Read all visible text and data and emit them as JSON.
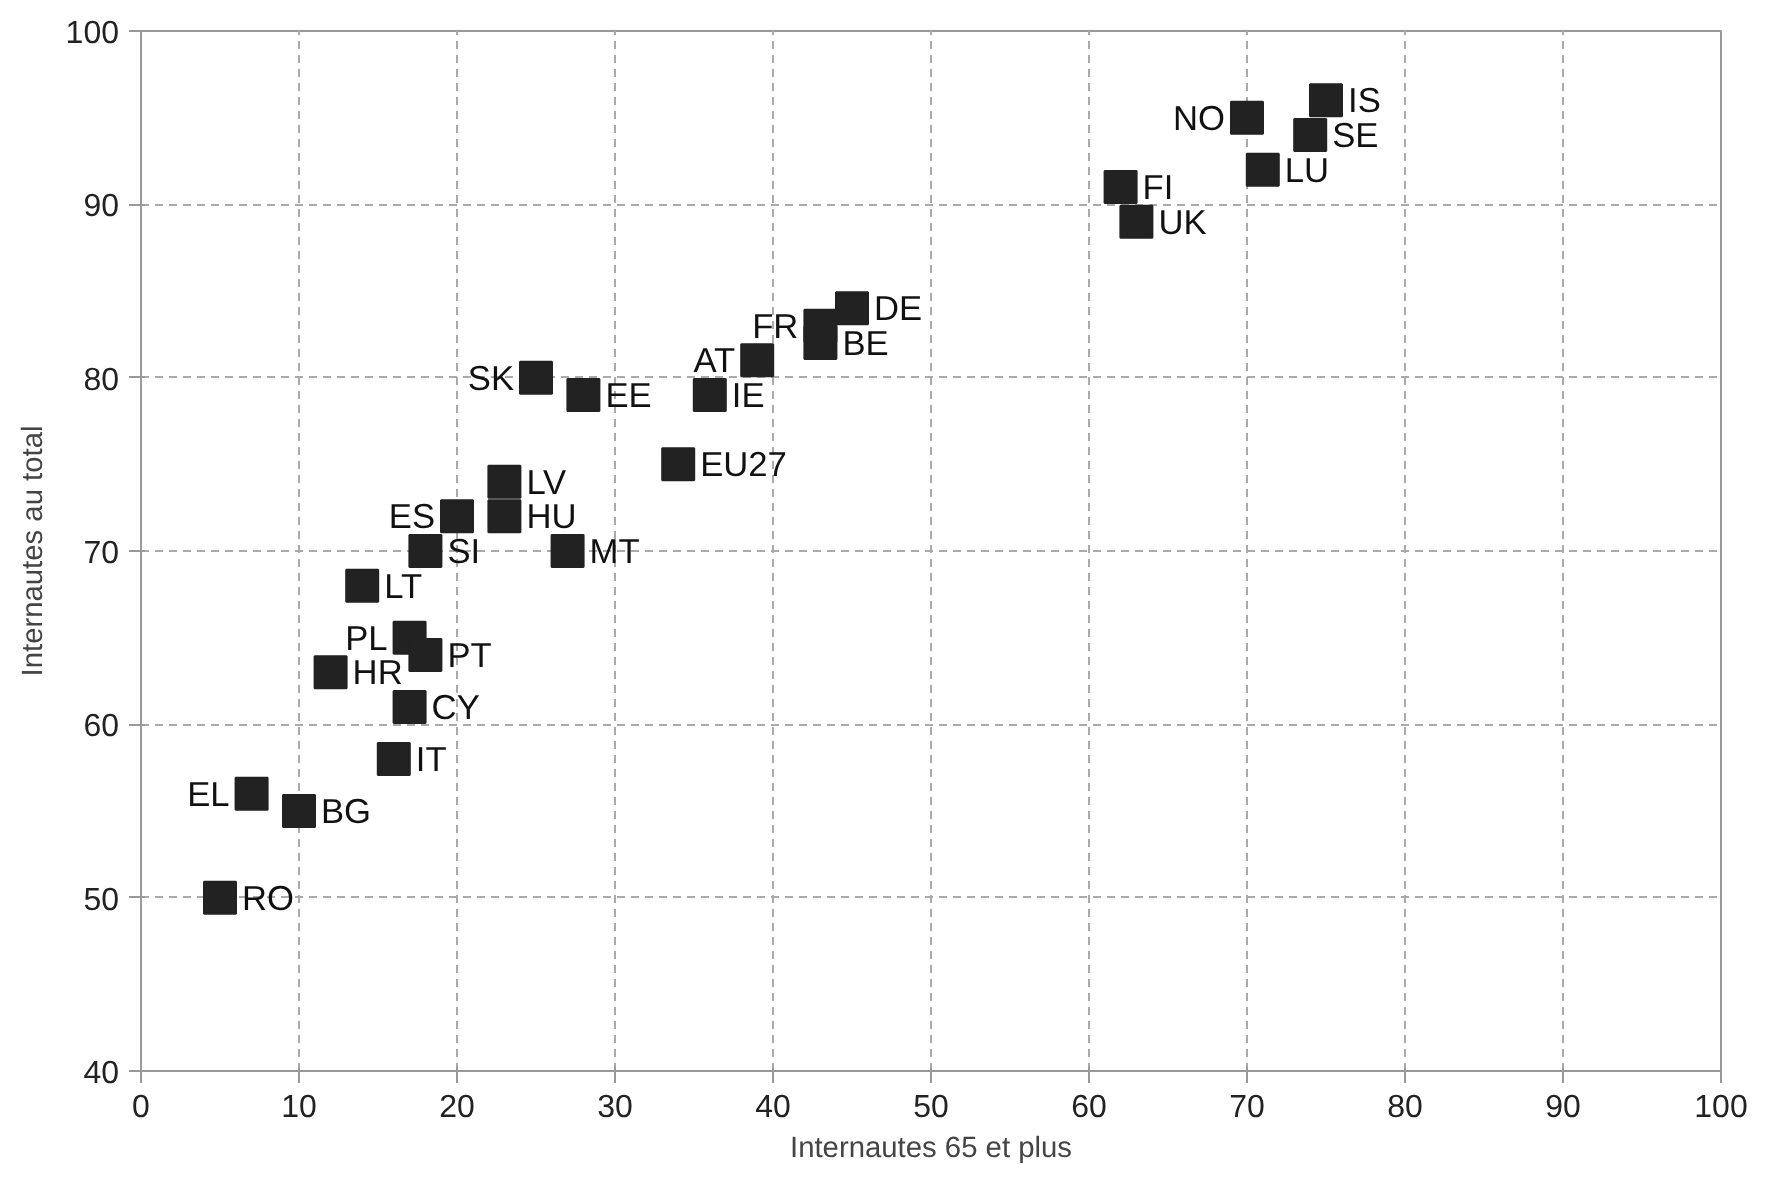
{
  "chart_data": {
    "type": "scatter",
    "xlabel": "Internautes 65 et plus",
    "ylabel": "Internautes au total",
    "xlim": [
      0,
      100
    ],
    "ylim": [
      40,
      100
    ],
    "xticks": [
      0,
      10,
      20,
      30,
      40,
      50,
      60,
      70,
      80,
      90,
      100
    ],
    "yticks": [
      40,
      50,
      60,
      70,
      80,
      90,
      100
    ],
    "grid": true,
    "marker": "square",
    "series": [
      {
        "color": "#222222",
        "x": [
          5,
          7,
          10,
          12,
          16,
          17,
          17,
          18,
          14,
          18,
          20,
          23,
          23,
          27,
          25,
          28,
          34,
          36,
          39,
          43,
          43,
          45,
          62,
          63,
          70,
          71,
          74,
          75
        ],
        "values": [
          50,
          56,
          55,
          63,
          58,
          61,
          65,
          64,
          68,
          70,
          72,
          74,
          72,
          70,
          80,
          79,
          75,
          79,
          81,
          82,
          83,
          84,
          91,
          89,
          95,
          92,
          94,
          96
        ]
      }
    ],
    "annotations": [
      {
        "text": "RO",
        "x": 5,
        "y": 50
      },
      {
        "text": "EL",
        "x": 7,
        "y": 56
      },
      {
        "text": "BG",
        "x": 10,
        "y": 55
      },
      {
        "text": "HR",
        "x": 12,
        "y": 63
      },
      {
        "text": "IT",
        "x": 16,
        "y": 58
      },
      {
        "text": "CY",
        "x": 17,
        "y": 61
      },
      {
        "text": "PL",
        "x": 17,
        "y": 65
      },
      {
        "text": "PT",
        "x": 18,
        "y": 64
      },
      {
        "text": "LT",
        "x": 14,
        "y": 68
      },
      {
        "text": "SI",
        "x": 18,
        "y": 70
      },
      {
        "text": "ES",
        "x": 20,
        "y": 72
      },
      {
        "text": "LV",
        "x": 23,
        "y": 74
      },
      {
        "text": "HU",
        "x": 23,
        "y": 72
      },
      {
        "text": "MT",
        "x": 27,
        "y": 70
      },
      {
        "text": "SK",
        "x": 25,
        "y": 80
      },
      {
        "text": "EE",
        "x": 28,
        "y": 79
      },
      {
        "text": "EU27",
        "x": 34,
        "y": 75
      },
      {
        "text": "IE",
        "x": 36,
        "y": 79
      },
      {
        "text": "AT",
        "x": 39,
        "y": 81
      },
      {
        "text": "BE",
        "x": 43,
        "y": 82
      },
      {
        "text": "FR",
        "x": 43,
        "y": 83
      },
      {
        "text": "DE",
        "x": 45,
        "y": 84
      },
      {
        "text": "FI",
        "x": 62,
        "y": 91
      },
      {
        "text": "UK",
        "x": 63,
        "y": 89
      },
      {
        "text": "NO",
        "x": 70,
        "y": 95
      },
      {
        "text": "LU",
        "x": 71,
        "y": 92
      },
      {
        "text": "SE",
        "x": 74,
        "y": 94
      },
      {
        "text": "IS",
        "x": 75,
        "y": 96
      }
    ]
  }
}
